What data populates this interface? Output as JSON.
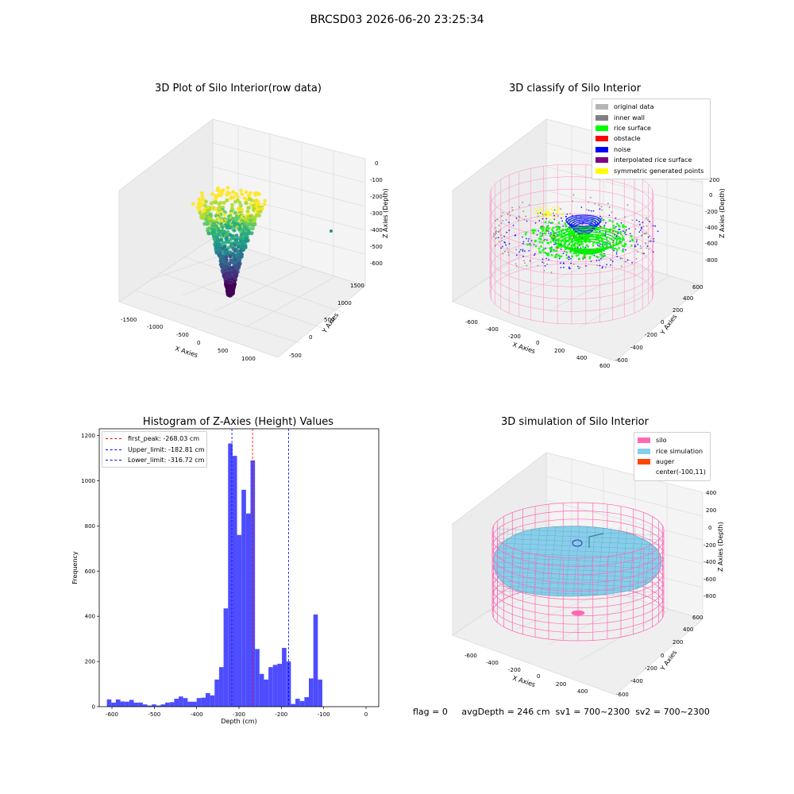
{
  "suptitle": "BRCSD03 2026-06-20 23:25:34",
  "panels": {
    "tl": {
      "title": "3D Plot of Silo Interior(row data)",
      "xlabel": "X Axies",
      "ylabel": "Y Axies",
      "zlabel": "Z Axies (Depth)",
      "xticks": [
        "-1500",
        "-1000",
        "-500",
        "0",
        "500",
        "1000"
      ],
      "yticks": [
        "-500",
        "0",
        "500",
        "1000",
        "1500"
      ],
      "zticks": [
        "0",
        "-100",
        "-200",
        "-300",
        "-400",
        "-500",
        "-600"
      ]
    },
    "tr": {
      "title": "3D classify of Silo Interior",
      "xlabel": "X Axies",
      "ylabel": "Y Axies",
      "zlabel": "Z Axies (Depth)",
      "xticks": [
        "-600",
        "-400",
        "-200",
        "0",
        "200",
        "400",
        "600"
      ],
      "yticks": [
        "-600",
        "-400",
        "-200",
        "0",
        "200",
        "400",
        "600"
      ],
      "zticks": [
        "200",
        "0",
        "-200",
        "-400",
        "-600",
        "-800"
      ],
      "legend": [
        {
          "label": "original data",
          "color": "#b5b5b5"
        },
        {
          "label": "inner wall",
          "color": "#808080"
        },
        {
          "label": "rice surface",
          "color": "#00ff00"
        },
        {
          "label": "obstacle",
          "color": "#ff0000"
        },
        {
          "label": "noise",
          "color": "#0000ff"
        },
        {
          "label": "interpolated rice surface",
          "color": "#800080"
        },
        {
          "label": "symmetric generated points",
          "color": "#ffff00"
        }
      ]
    },
    "br": {
      "title": "3D simulation of Silo Interior",
      "xlabel": "X Axies",
      "ylabel": "Y Axies",
      "zlabel": "Z Axies (Depth)",
      "xticks": [
        "-600",
        "-400",
        "-200",
        "0",
        "200",
        "400"
      ],
      "yticks": [
        "-600",
        "-400",
        "-200",
        "0",
        "200",
        "400",
        "600"
      ],
      "zticks": [
        "400",
        "200",
        "0",
        "-200",
        "-400",
        "-600",
        "-800"
      ],
      "legend": [
        {
          "label": "silo",
          "color": "#ff69b4"
        },
        {
          "label": "rice simulation",
          "color": "#87ceeb"
        },
        {
          "label": "auger",
          "color": "#ff4500"
        },
        {
          "label": "center(-100,11)",
          "color": ""
        }
      ]
    }
  },
  "footer": {
    "text": "flag = 0     avgDepth = 246 cm  sv1 = 700~2300  sv2 = 700~2300"
  },
  "chart_data": [
    {
      "type": "histogram",
      "title": "Histogram of Z-Axies (Height) Values",
      "xlabel": "Depth (cm)",
      "ylabel": "Frequency",
      "xlim": [
        -630,
        30
      ],
      "ylim": [
        0,
        1230
      ],
      "xticks": [
        -600,
        -500,
        -400,
        -300,
        -200,
        -100,
        0
      ],
      "yticks": [
        0,
        200,
        400,
        600,
        800,
        1000,
        1200
      ],
      "bar_color": "#4d4dff",
      "bin_width": 10.6,
      "bin_start": -612,
      "values": [
        32,
        18,
        32,
        23,
        22,
        30,
        18,
        18,
        10,
        5,
        10,
        5,
        10,
        18,
        20,
        35,
        45,
        38,
        22,
        22,
        38,
        40,
        60,
        50,
        120,
        175,
        435,
        1165,
        1110,
        760,
        960,
        855,
        1090,
        255,
        145,
        120,
        175,
        185,
        190,
        260,
        200,
        12,
        35,
        25,
        42,
        125,
        408,
        120,
        0
      ],
      "vlines": [
        {
          "label": "first_peak: -268.03 cm",
          "x": -268.03,
          "color": "#ff0000"
        },
        {
          "label": "Upper_limit: -182.81 cm",
          "x": -182.81,
          "color": "#0000ff"
        },
        {
          "label": "Lower_limit: -316.72 cm",
          "x": -316.72,
          "color": "#0000ff"
        }
      ]
    }
  ]
}
